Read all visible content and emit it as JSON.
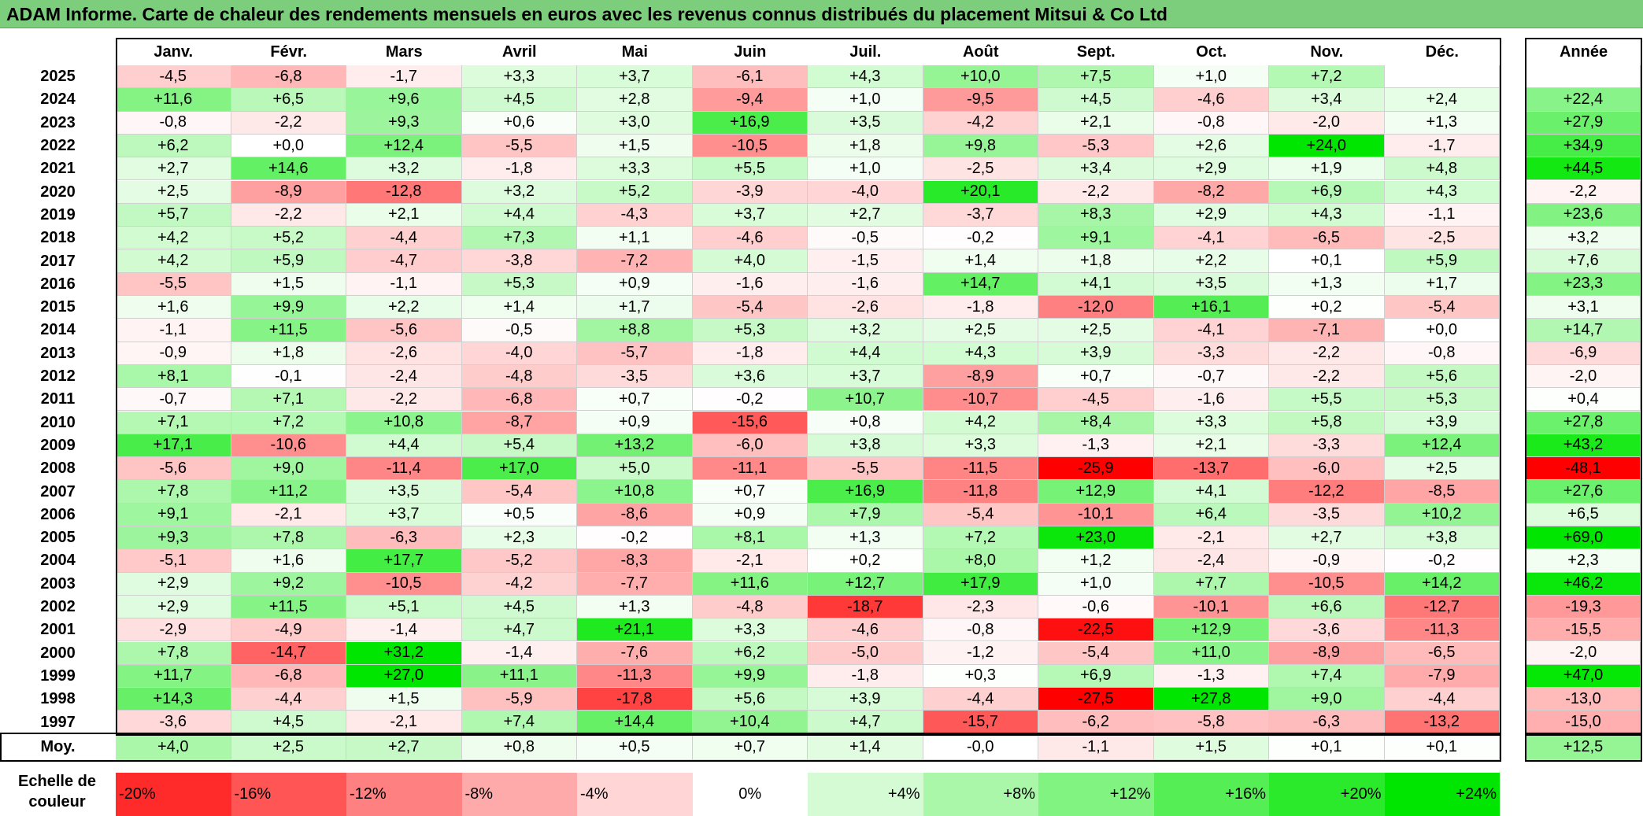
{
  "title": "ADAM Informe. Carte de chaleur des rendements mensuels en euros avec les revenus connus distribués du placement Mitsui & Co Ltd",
  "chart_data": {
    "type": "heatmap",
    "months": [
      "Janv.",
      "Févr.",
      "Mars",
      "Avril",
      "Mai",
      "Juin",
      "Juil.",
      "Août",
      "Sept.",
      "Oct.",
      "Nov.",
      "Déc."
    ],
    "year_col_label": "Année",
    "avg_row_label": "Moy.",
    "rows": [
      {
        "year": "2025",
        "values": [
          "-4,5",
          "-6,8",
          "-1,7",
          "+3,3",
          "+3,7",
          "-6,1",
          "+4,3",
          "+10,0",
          "+7,5",
          "+1,0",
          "+7,2",
          ""
        ],
        "annual": ""
      },
      {
        "year": "2024",
        "values": [
          "+11,6",
          "+6,5",
          "+9,6",
          "+4,5",
          "+2,8",
          "-9,4",
          "+1,0",
          "-9,5",
          "+4,5",
          "-4,6",
          "+3,4",
          "+2,4"
        ],
        "annual": "+22,4"
      },
      {
        "year": "2023",
        "values": [
          "-0,8",
          "-2,2",
          "+9,3",
          "+0,6",
          "+3,0",
          "+16,9",
          "+3,5",
          "-4,2",
          "+2,1",
          "-0,8",
          "-2,0",
          "+1,3"
        ],
        "annual": "+27,9"
      },
      {
        "year": "2022",
        "values": [
          "+6,2",
          "+0,0",
          "+12,4",
          "-5,5",
          "+1,5",
          "-10,5",
          "+1,8",
          "+9,8",
          "-5,3",
          "+2,6",
          "+24,0",
          "-1,7"
        ],
        "annual": "+34,9"
      },
      {
        "year": "2021",
        "values": [
          "+2,7",
          "+14,6",
          "+3,2",
          "-1,8",
          "+3,3",
          "+5,5",
          "+1,0",
          "-2,5",
          "+3,4",
          "+2,9",
          "+1,9",
          "+4,8"
        ],
        "annual": "+44,5"
      },
      {
        "year": "2020",
        "values": [
          "+2,5",
          "-8,9",
          "-12,8",
          "+3,2",
          "+5,2",
          "-3,9",
          "-4,0",
          "+20,1",
          "-2,2",
          "-8,2",
          "+6,9",
          "+4,3"
        ],
        "annual": "-2,2"
      },
      {
        "year": "2019",
        "values": [
          "+5,7",
          "-2,2",
          "+2,1",
          "+4,4",
          "-4,3",
          "+3,7",
          "+2,7",
          "-3,7",
          "+8,3",
          "+2,9",
          "+4,3",
          "-1,1"
        ],
        "annual": "+23,6"
      },
      {
        "year": "2018",
        "values": [
          "+4,2",
          "+5,2",
          "-4,4",
          "+7,3",
          "+1,1",
          "-4,6",
          "-0,5",
          "-0,2",
          "+9,1",
          "-4,1",
          "-6,5",
          "-2,5"
        ],
        "annual": "+3,2"
      },
      {
        "year": "2017",
        "values": [
          "+4,2",
          "+5,9",
          "-4,7",
          "-3,8",
          "-7,2",
          "+4,0",
          "-1,5",
          "+1,4",
          "+1,8",
          "+2,2",
          "+0,1",
          "+5,9"
        ],
        "annual": "+7,6"
      },
      {
        "year": "2016",
        "values": [
          "-5,5",
          "+1,5",
          "-1,1",
          "+5,3",
          "+0,9",
          "-1,6",
          "-1,6",
          "+14,7",
          "+4,1",
          "+3,5",
          "+1,3",
          "+1,7"
        ],
        "annual": "+23,3"
      },
      {
        "year": "2015",
        "values": [
          "+1,6",
          "+9,9",
          "+2,2",
          "+1,4",
          "+1,7",
          "-5,4",
          "-2,6",
          "-1,8",
          "-12,0",
          "+16,1",
          "+0,2",
          "-5,4"
        ],
        "annual": "+3,1"
      },
      {
        "year": "2014",
        "values": [
          "-1,1",
          "+11,5",
          "-5,6",
          "-0,5",
          "+8,8",
          "+5,3",
          "+3,2",
          "+2,5",
          "+2,5",
          "-4,1",
          "-7,1",
          "+0,0"
        ],
        "annual": "+14,7"
      },
      {
        "year": "2013",
        "values": [
          "-0,9",
          "+1,8",
          "-2,6",
          "-4,0",
          "-5,7",
          "-1,8",
          "+4,4",
          "+4,3",
          "+3,9",
          "-3,3",
          "-2,2",
          "-0,8"
        ],
        "annual": "-6,9"
      },
      {
        "year": "2012",
        "values": [
          "+8,1",
          "-0,1",
          "-2,4",
          "-4,8",
          "-3,5",
          "+3,6",
          "+3,7",
          "-8,9",
          "+0,7",
          "-0,7",
          "-2,2",
          "+5,6"
        ],
        "annual": "-2,0"
      },
      {
        "year": "2011",
        "values": [
          "-0,7",
          "+7,1",
          "-2,2",
          "-6,8",
          "+0,7",
          "-0,2",
          "+10,7",
          "-10,7",
          "-4,5",
          "-1,6",
          "+5,5",
          "+5,3"
        ],
        "annual": "+0,4"
      },
      {
        "year": "2010",
        "values": [
          "+7,1",
          "+7,2",
          "+10,8",
          "-8,7",
          "+0,9",
          "-15,6",
          "+0,8",
          "+4,2",
          "+8,4",
          "+3,3",
          "+5,8",
          "+3,9"
        ],
        "annual": "+27,8"
      },
      {
        "year": "2009",
        "values": [
          "+17,1",
          "-10,6",
          "+4,4",
          "+5,4",
          "+13,2",
          "-6,0",
          "+3,8",
          "+3,3",
          "-1,3",
          "+2,1",
          "-3,3",
          "+12,4"
        ],
        "annual": "+43,2"
      },
      {
        "year": "2008",
        "values": [
          "-5,6",
          "+9,0",
          "-11,4",
          "+17,0",
          "+5,0",
          "-11,1",
          "-5,5",
          "-11,5",
          "-25,9",
          "-13,7",
          "-6,0",
          "+2,5"
        ],
        "annual": "-48,1"
      },
      {
        "year": "2007",
        "values": [
          "+7,8",
          "+11,2",
          "+3,5",
          "-5,4",
          "+10,8",
          "+0,7",
          "+16,9",
          "-11,8",
          "+12,9",
          "+4,1",
          "-12,2",
          "-8,5"
        ],
        "annual": "+27,6"
      },
      {
        "year": "2006",
        "values": [
          "+9,1",
          "-2,1",
          "+3,7",
          "+0,5",
          "-8,6",
          "+0,9",
          "+7,9",
          "-5,4",
          "-10,1",
          "+6,4",
          "-3,5",
          "+10,2"
        ],
        "annual": "+6,5"
      },
      {
        "year": "2005",
        "values": [
          "+9,3",
          "+7,8",
          "-6,3",
          "+2,3",
          "-0,2",
          "+8,1",
          "+1,3",
          "+7,2",
          "+23,0",
          "-2,1",
          "+2,7",
          "+3,8"
        ],
        "annual": "+69,0"
      },
      {
        "year": "2004",
        "values": [
          "-5,1",
          "+1,6",
          "+17,7",
          "-5,2",
          "-8,3",
          "-2,1",
          "+0,2",
          "+8,0",
          "+1,2",
          "-2,4",
          "-0,9",
          "-0,2"
        ],
        "annual": "+2,3"
      },
      {
        "year": "2003",
        "values": [
          "+2,9",
          "+9,2",
          "-10,5",
          "-4,2",
          "-7,7",
          "+11,6",
          "+12,7",
          "+17,9",
          "+1,0",
          "+7,7",
          "-10,5",
          "+14,2"
        ],
        "annual": "+46,2"
      },
      {
        "year": "2002",
        "values": [
          "+2,9",
          "+11,5",
          "+5,1",
          "+4,5",
          "+1,3",
          "-4,8",
          "-18,7",
          "-2,3",
          "-0,6",
          "-10,1",
          "+6,6",
          "-12,7"
        ],
        "annual": "-19,3"
      },
      {
        "year": "2001",
        "values": [
          "-2,9",
          "-4,9",
          "-1,4",
          "+4,7",
          "+21,1",
          "+3,3",
          "-4,6",
          "-0,8",
          "-22,5",
          "+12,9",
          "-3,6",
          "-11,3"
        ],
        "annual": "-15,5"
      },
      {
        "year": "2000",
        "values": [
          "+7,8",
          "-14,7",
          "+31,2",
          "-1,4",
          "-7,6",
          "+6,2",
          "-5,0",
          "-1,2",
          "-5,4",
          "+11,0",
          "-8,9",
          "-6,5"
        ],
        "annual": "-2,0"
      },
      {
        "year": "1999",
        "values": [
          "+11,7",
          "-6,8",
          "+27,0",
          "+11,1",
          "-11,3",
          "+9,9",
          "-1,8",
          "+0,3",
          "+6,9",
          "-1,3",
          "+7,4",
          "-7,9"
        ],
        "annual": "+47,0"
      },
      {
        "year": "1998",
        "values": [
          "+14,3",
          "-4,4",
          "+1,5",
          "-5,9",
          "-17,8",
          "+5,6",
          "+3,9",
          "-4,4",
          "-27,5",
          "+27,8",
          "+9,0",
          "-4,4"
        ],
        "annual": "-13,0"
      },
      {
        "year": "1997",
        "values": [
          "-3,6",
          "+4,5",
          "-2,1",
          "+7,4",
          "+14,4",
          "+10,4",
          "+4,7",
          "-15,7",
          "-6,2",
          "-5,8",
          "-6,3",
          "-13,2"
        ],
        "annual": "-15,0"
      }
    ],
    "averages": [
      "+4,0",
      "+2,5",
      "+2,7",
      "+0,8",
      "+0,5",
      "+0,7",
      "+1,4",
      "-0,0",
      "-1,1",
      "+1,5",
      "+0,1",
      "+0,1"
    ],
    "annual_average": "+12,5",
    "legend_title": "Echelle de couleur",
    "legend": [
      "-20%",
      "-16%",
      "-12%",
      "-8%",
      "-4%",
      "0%",
      "+4%",
      "+8%",
      "+12%",
      "+16%",
      "+20%",
      "+24%"
    ],
    "legend_values": [
      -20,
      -16,
      -12,
      -8,
      -4,
      0,
      4,
      8,
      12,
      16,
      20,
      24
    ],
    "colors": {
      "negative_max": "#ff0000",
      "zero": "#ffffff",
      "positive_max": "#00e600",
      "title_bar": "#7ccd7c"
    }
  }
}
